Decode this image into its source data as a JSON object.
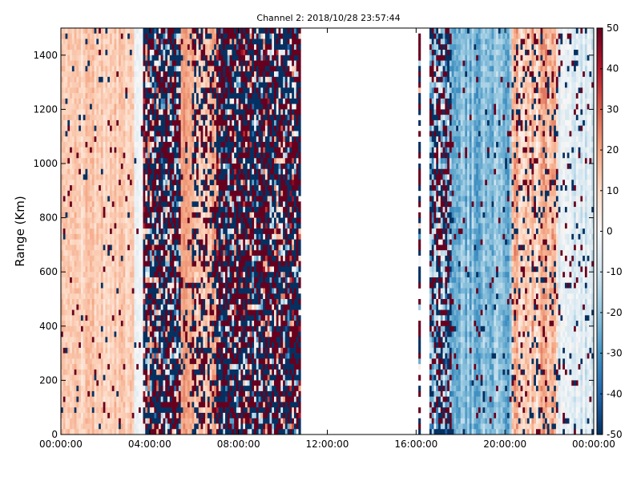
{
  "chart_data": {
    "type": "heatmap",
    "title": "Channel 2: 2018/10/28 23:57:44",
    "xlabel": "",
    "ylabel": "Range (Km)",
    "x_ticks": [
      "00:00:00",
      "04:00:00",
      "08:00:00",
      "12:00:00",
      "16:00:00",
      "20:00:00",
      "00:00:00"
    ],
    "x_range_hours": [
      0,
      24
    ],
    "y_ticks": [
      0,
      200,
      400,
      600,
      800,
      1000,
      1200,
      1400
    ],
    "ylim": [
      0,
      1500
    ],
    "colorbar": {
      "min": -50,
      "max": 50,
      "ticks": [
        50,
        40,
        30,
        20,
        10,
        0,
        -10,
        -20,
        -30,
        -40,
        -50
      ],
      "colormap": "RdBu_r",
      "colors": [
        "#053061",
        "#2166ac",
        "#4393c3",
        "#92c5de",
        "#d1e5f0",
        "#f7f7f7",
        "#fddbc7",
        "#f4a582",
        "#d6604d",
        "#b2182b",
        "#67001f"
      ]
    },
    "segments": [
      {
        "start_hour": 0.0,
        "end_hour": 3.35,
        "pattern": "smooth",
        "base_value": 12,
        "noise": 8,
        "outlier_rate": 0.05
      },
      {
        "start_hour": 3.35,
        "end_hour": 3.75,
        "pattern": "smooth",
        "base_value": -4,
        "noise": 6,
        "outlier_rate": 0.02
      },
      {
        "start_hour": 3.75,
        "end_hour": 5.4,
        "pattern": "noisy",
        "base_value": 0,
        "noise": 50,
        "outlier_rate": 0.7
      },
      {
        "start_hour": 5.4,
        "end_hour": 5.9,
        "pattern": "smooth",
        "base_value": 22,
        "noise": 8,
        "outlier_rate": 0.1
      },
      {
        "start_hour": 5.9,
        "end_hour": 7.0,
        "pattern": "smooth",
        "base_value": 15,
        "noise": 12,
        "outlier_rate": 0.45
      },
      {
        "start_hour": 7.0,
        "end_hour": 10.8,
        "pattern": "noisy",
        "base_value": 0,
        "noise": 50,
        "outlier_rate": 0.75
      },
      {
        "start_hour": 16.05,
        "end_hour": 16.25,
        "pattern": "sparse",
        "base_value": 0,
        "noise": 50,
        "outlier_rate": 0.8
      },
      {
        "start_hour": 16.65,
        "end_hour": 17.6,
        "pattern": "noisy",
        "base_value": -20,
        "noise": 30,
        "outlier_rate": 0.55
      },
      {
        "start_hour": 17.6,
        "end_hour": 20.3,
        "pattern": "smooth",
        "base_value": -22,
        "noise": 12,
        "outlier_rate": 0.05
      },
      {
        "start_hour": 20.3,
        "end_hour": 22.4,
        "pattern": "smooth",
        "base_value": 14,
        "noise": 14,
        "outlier_rate": 0.18
      },
      {
        "start_hour": 22.4,
        "end_hour": 24.0,
        "pattern": "smooth",
        "base_value": -6,
        "noise": 10,
        "outlier_rate": 0.1
      }
    ]
  }
}
